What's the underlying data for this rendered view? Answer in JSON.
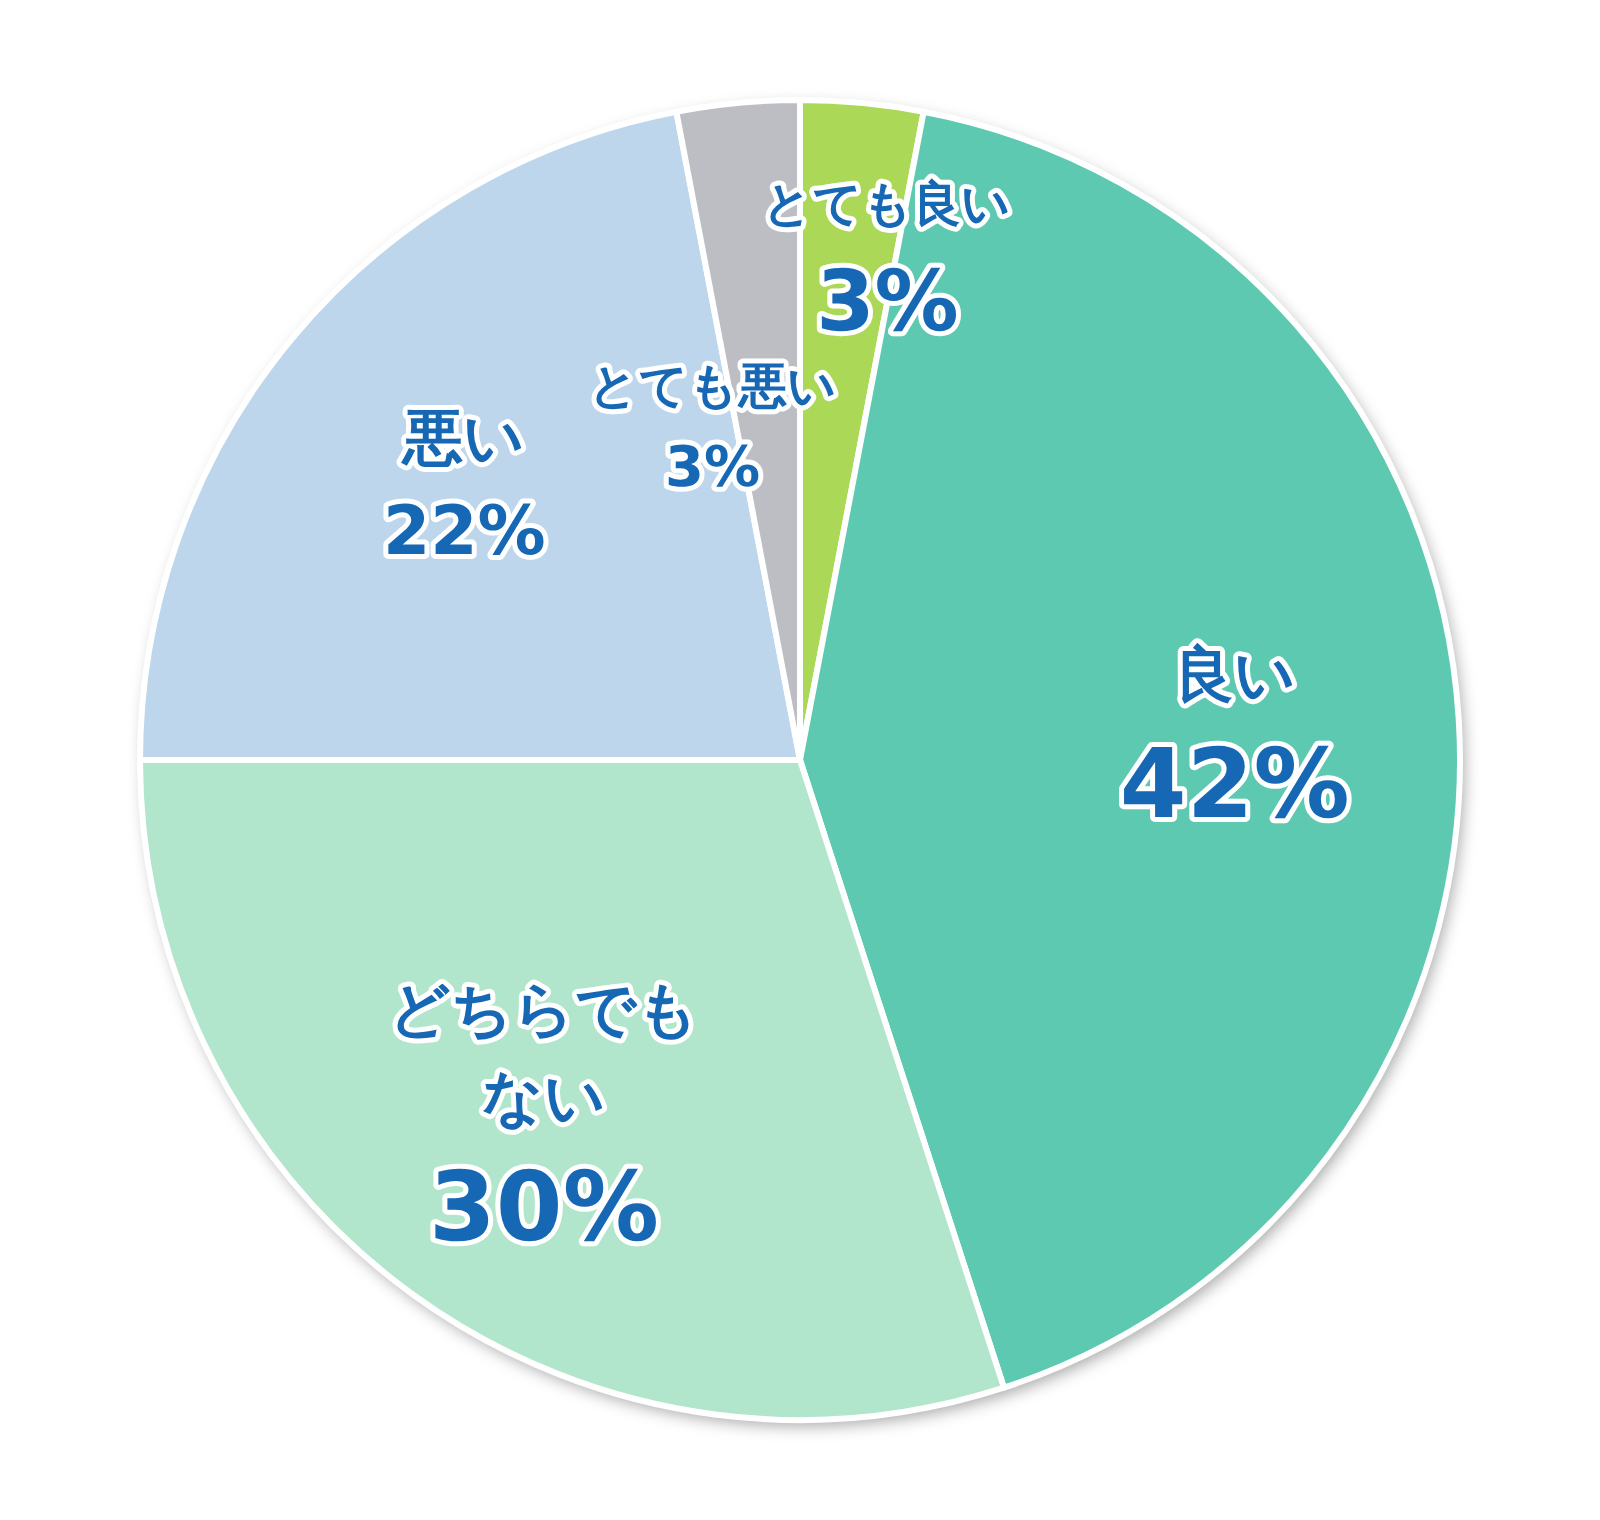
{
  "chart_data": {
    "type": "pie",
    "categories": [
      "とても良い",
      "良い",
      "どちらでもない",
      "悪い",
      "とても悪い"
    ],
    "values": [
      3,
      42,
      30,
      22,
      3
    ],
    "value_labels": [
      "3%",
      "42%",
      "30%",
      "22%",
      "3%"
    ],
    "colors": [
      "#abd957",
      "#5ec9b1",
      "#b1e5cc",
      "#bdd6ec",
      "#bcbec4"
    ]
  }
}
